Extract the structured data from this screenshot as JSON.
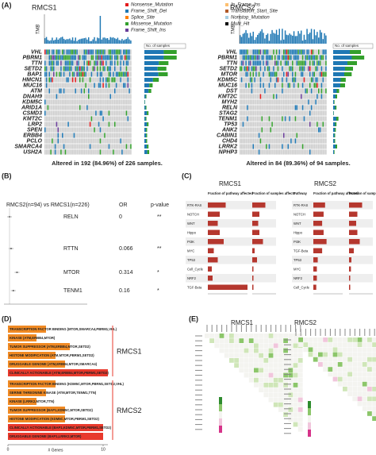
{
  "panel_a": {
    "letter": "(A)",
    "legend": [
      "Nonsense_Mutation",
      "Frame_Shift_Del",
      "Splice_Site",
      "Missense_Mutation",
      "Frame_Shift_Ins",
      "In_Frame_Ins",
      "Translation_Start_Site",
      "Nonstop_Mutation",
      "Multi_Hit"
    ],
    "legend_colors": [
      "#E31A1C",
      "#1F78B4",
      "#FF7F00",
      "#33A02C",
      "#6A3D9A",
      "#FDBF6F",
      "#B15928",
      "#A6CEE3",
      "#000000"
    ],
    "plots": [
      {
        "title": "RMCS1",
        "y_label": "TMB",
        "side_label": "No. of samples",
        "genes": [
          "VHL",
          "PBRM1",
          "TTN",
          "SETD2",
          "BAP1",
          "HMCN1",
          "MUC16",
          "ATM",
          "DNAH9",
          "KDM5C",
          "ARID1A",
          "CSMD3",
          "KMT2C",
          "LRP2",
          "SPEN",
          "ERBB4",
          "PCLO",
          "SMARCA4",
          "USH2A"
        ],
        "caption": "Altered in 192 (84.96%) of 226 samples."
      },
      {
        "title": "RMCS2",
        "y_label": "TMB",
        "side_label": "No. of samples",
        "genes": [
          "VHL",
          "PBRM1",
          "TTN",
          "SETD2",
          "MTOR",
          "KDM5C",
          "MUC16",
          "DST",
          "KMT2C",
          "MYH2",
          "RELN",
          "STAG2",
          "TENM1",
          "TP53",
          "ANK2",
          "CABIN1",
          "CHD4",
          "LRRK2",
          "NPHP3"
        ],
        "caption": "Altered in 84 (89.36%) of 94 samples."
      }
    ]
  },
  "panel_b": {
    "letter": "(B)",
    "header": "RMCS2(n=94) vs RMCS1(n=226)",
    "or_header": "OR",
    "p_header": "p-value",
    "genes": [
      "RELN",
      "RTTN",
      "MTOR",
      "TENM1"
    ],
    "or": [
      0,
      0.066,
      0.314,
      0.16
    ],
    "p_labels": [
      "**",
      "**",
      "*",
      "*"
    ]
  },
  "panel_c": {
    "letter": "(C)",
    "plots": [
      {
        "title": "RMCS1",
        "headers": [
          "Fraction of pathway affected",
          "Fraction of samples affects"
        ],
        "pathways": [
          "RTK-RAS",
          "NOTCH",
          "WNT",
          "Hippo",
          "PI3K",
          "MYC",
          "TP53",
          "Cell_Cycle",
          "NRF2",
          "TGF-Beta"
        ],
        "fraction_affected": [
          0.45,
          0.3,
          0.25,
          0.3,
          0.4,
          0.15,
          0.25,
          0.1,
          0.12,
          1.0
        ],
        "fraction_samples": [
          0.55,
          0.3,
          0.25,
          0.3,
          0.45,
          0.1,
          0.2,
          0.05,
          0.05,
          0.05
        ]
      },
      {
        "title": "RMCS2",
        "headers": [
          "Pathway",
          "Fraction of pathway affected",
          "Fraction of samples affects"
        ],
        "pathways": [
          "RTK-RAS",
          "NOTCH",
          "WNT",
          "Hippo",
          "PI3K",
          "TGF-Beta",
          "TP53",
          "MYC",
          "NRF2",
          "Cell_Cycle"
        ],
        "fraction_affected": [
          0.4,
          0.35,
          0.3,
          0.35,
          0.45,
          0.3,
          0.15,
          0.12,
          0.12,
          0.1
        ],
        "fraction_samples": [
          0.55,
          0.35,
          0.3,
          0.35,
          0.45,
          0.2,
          0.1,
          0.08,
          0.05,
          0.05
        ]
      }
    ]
  },
  "panel_d": {
    "letter": "(D)",
    "x_label": "# Genes",
    "xlim": [
      0,
      10
    ],
    "xticks": [
      0,
      10
    ],
    "groups": [
      {
        "name": "RMCS1",
        "categories": [
          "TRANSCRIPTION FACTOR BINDING (MTOR,SMARCA4,PBRM1,VHL)",
          "KINASE (ATM,ERBB4,MTOR)",
          "TUMOR SUPPRESSOR (ATM,ERBB4,MTOR,SETD2)",
          "HISTONE MODIFICATION (ATM,MTOR,PBRM1,SETD2)",
          "DRUGGABLE GENOME (ATM,ERBB4,MTOR,SMARCA4)",
          "CLINICALLY ACTIONABLE (ATM,ERBB4,MTOR,PBRM1,SETD2)"
        ],
        "values": [
          4,
          3,
          6.5,
          5,
          6,
          10.5
        ],
        "colors": [
          "#F08A24",
          "#F08A24",
          "#F08A24",
          "#F08A24",
          "#F08A24",
          "#E8392C"
        ]
      },
      {
        "name": "RMCS2",
        "categories": [
          "TRANSCRIPTION FACTOR BINDING (KDM5C,MTOR,PBRM1,SETD2,VHL)",
          "SERINE THREONINE KINASE (ATM,MTOR,TENM1,TTN)",
          "KINASE (LRRK2,MTOR,TTN)",
          "TUMOR SUPPRESSOR (BAP1,KDM5C,MTOR,SETD2)",
          "HISTONE MODIFICATION (KDM5C,MTOR,PBRM1,SETD2)",
          "CLINICALLY ACTIONABLE (BAP1,KDM5C,MTOR,PBRM1,SETD2)",
          "DRUGGABLE GENOME (BAP1,LRRK2,MTOR)"
        ],
        "values": [
          5,
          4,
          3,
          6,
          6,
          10,
          10
        ],
        "colors": [
          "#F08A24",
          "#F08A24",
          "#F08A24",
          "#F08A24",
          "#F08A24",
          "#E8392C",
          "#E8392C"
        ]
      }
    ]
  },
  "panel_e": {
    "letter": "(E)",
    "titles": [
      "RMCS1",
      "RMCS2"
    ]
  }
}
